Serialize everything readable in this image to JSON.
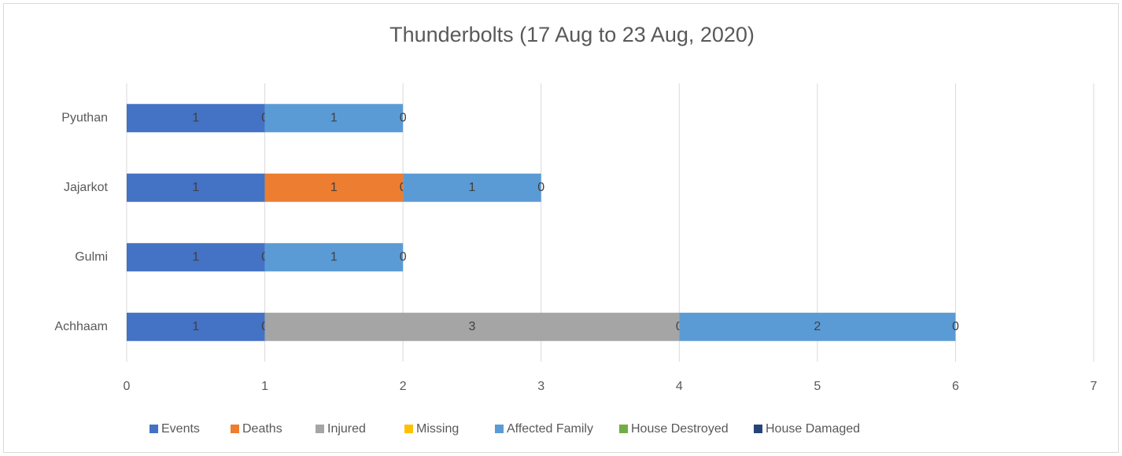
{
  "chart_data": {
    "type": "stacked_bar_horizontal",
    "title": "Thunderbolts (17 Aug to 23 Aug, 2020)",
    "categories": [
      "Achhaam",
      "Gulmi",
      "Jajarkot",
      "Pyuthan"
    ],
    "series": [
      {
        "name": "Events",
        "color": "#4472c4",
        "values": [
          1,
          1,
          1,
          1
        ]
      },
      {
        "name": "Deaths",
        "color": "#ed7d31",
        "values": [
          0,
          0,
          1,
          0
        ]
      },
      {
        "name": "Injured",
        "color": "#a5a5a5",
        "values": [
          3,
          null,
          null,
          null
        ]
      },
      {
        "name": "Missing",
        "color": "#ffc000",
        "values": [
          0,
          null,
          0,
          null
        ]
      },
      {
        "name": "Affected Family",
        "color": "#5b9bd5",
        "values": [
          2,
          1,
          1,
          1
        ]
      },
      {
        "name": "House Destroyed",
        "color": "#70ad47",
        "values": [
          0,
          0,
          0,
          0
        ]
      },
      {
        "name": "House Damaged",
        "color": "#264478",
        "values": [
          null,
          null,
          null,
          null
        ]
      }
    ],
    "xlim": [
      0,
      7
    ],
    "xticks": [
      0,
      1,
      2,
      3,
      4,
      5,
      6,
      7
    ],
    "grid": true,
    "legend": "bottom"
  }
}
